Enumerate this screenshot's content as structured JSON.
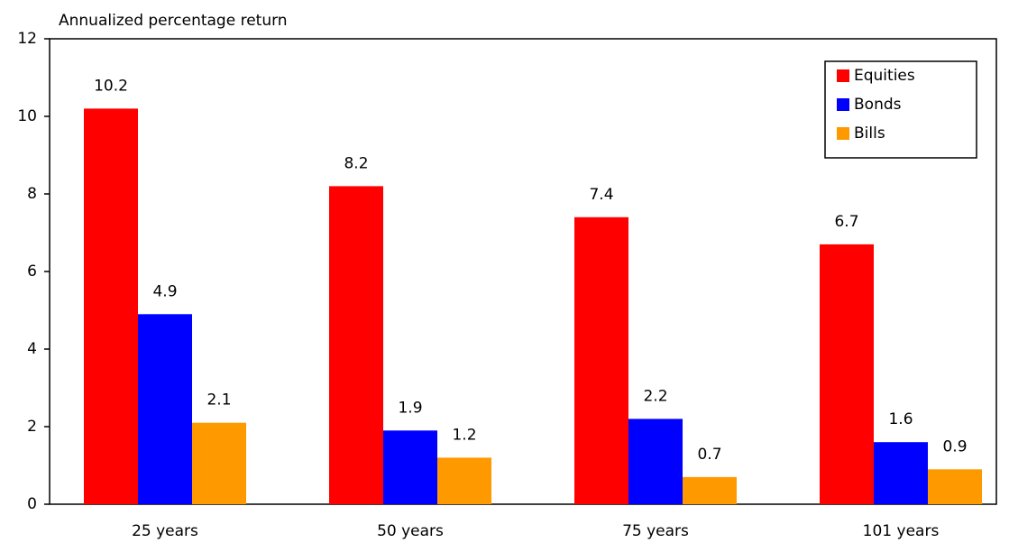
{
  "chart_data": {
    "type": "bar",
    "title": "Annualized percentage return",
    "categories": [
      "25 years",
      "50 years",
      "75 years",
      "101 years"
    ],
    "series": [
      {
        "name": "Equities",
        "color": "#ff0000",
        "values": [
          10.2,
          8.2,
          7.4,
          6.7
        ]
      },
      {
        "name": "Bonds",
        "color": "#0000ff",
        "values": [
          4.9,
          1.9,
          2.2,
          1.6
        ]
      },
      {
        "name": "Bills",
        "color": "#ff9900",
        "values": [
          2.1,
          1.2,
          0.7,
          0.9
        ]
      }
    ],
    "ylim": [
      0,
      12
    ],
    "yticks": [
      0,
      2,
      4,
      6,
      8,
      10,
      12
    ],
    "legend": "upper right"
  }
}
